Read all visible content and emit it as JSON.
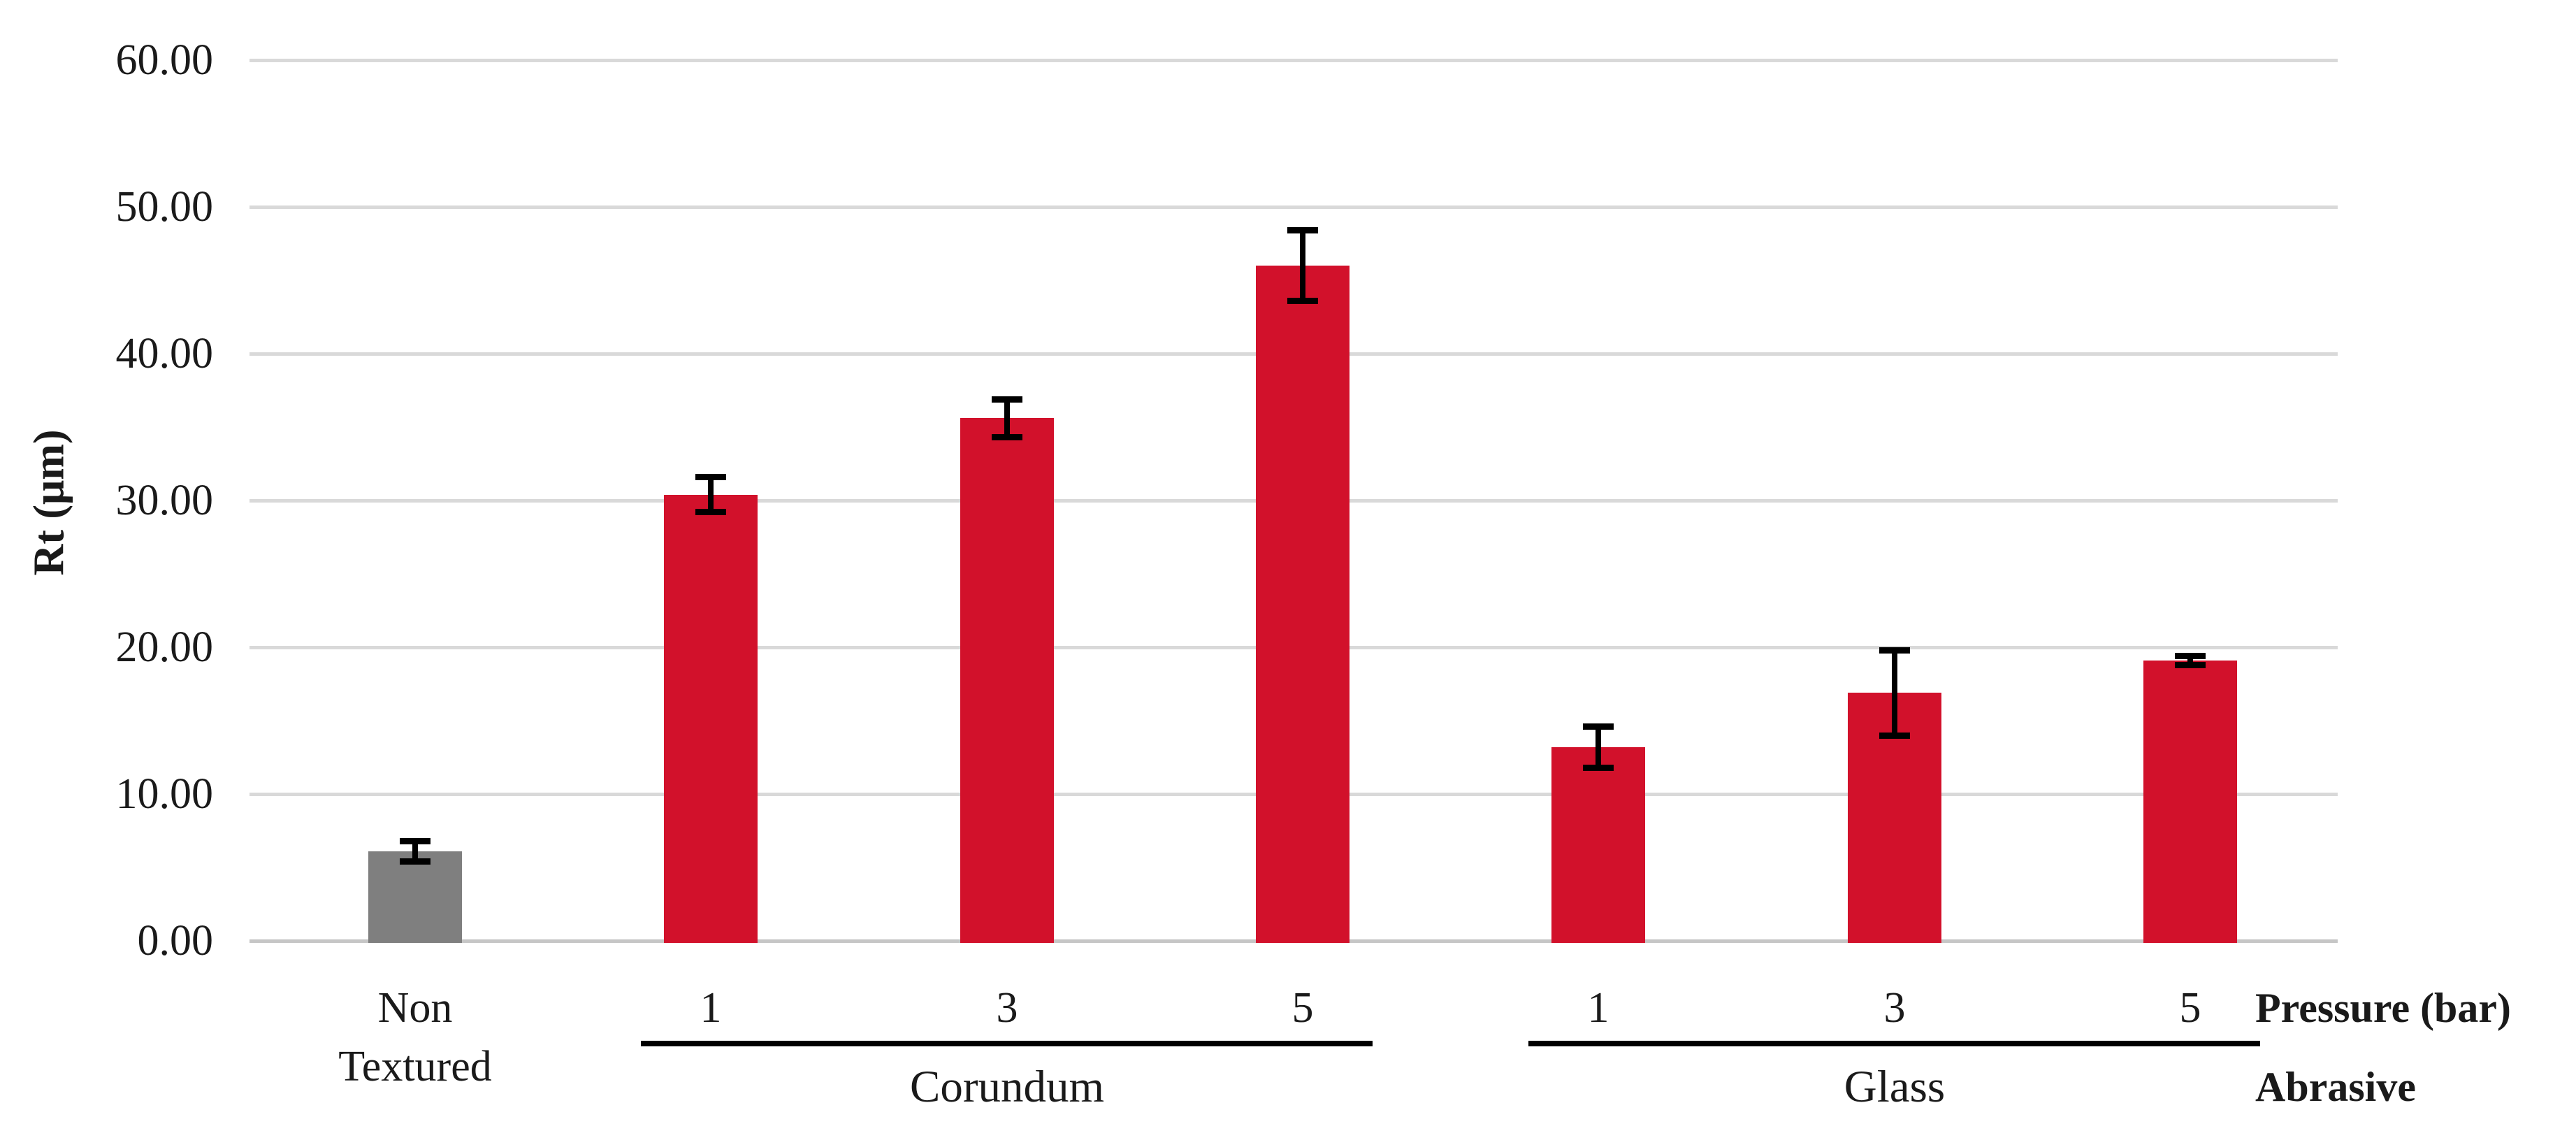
{
  "chart_data": {
    "type": "bar",
    "title": "",
    "ylabel": "Rt (μm)",
    "xlabel_pressure": "Pressure (bar)",
    "xlabel_abrasive": "Abrasive",
    "ylim": [
      0,
      60
    ],
    "yticks": [
      0,
      10,
      20,
      30,
      40,
      50,
      60
    ],
    "ytick_labels": [
      "0.00",
      "10.00",
      "20.00",
      "30.00",
      "40.00",
      "50.00",
      "60.00"
    ],
    "grid": true,
    "legend": "none",
    "categories": [
      "Non Textured",
      "1",
      "3",
      "5",
      "1",
      "3",
      "5"
    ],
    "values": [
      6.1,
      30.4,
      35.6,
      46.0,
      13.2,
      16.9,
      19.1
    ],
    "errors": [
      0.7,
      1.2,
      1.3,
      2.4,
      1.4,
      2.9,
      0.3
    ],
    "bar_colors": [
      "#7F7F7F",
      "#D2112B",
      "#D2112B",
      "#D2112B",
      "#D2112B",
      "#D2112B",
      "#D2112B"
    ],
    "groups": [
      {
        "label": "Corundum",
        "start": 1,
        "end": 3
      },
      {
        "label": "Glass",
        "start": 4,
        "end": 6
      }
    ]
  },
  "colors": {
    "bar_red": "#D2112B",
    "bar_gray": "#7F7F7F",
    "gridline": "#D9D9D9",
    "axis_line": "#C6C6C6",
    "error_bar": "#000000",
    "text": "#1A1A1A",
    "background": "#FFFFFF"
  }
}
